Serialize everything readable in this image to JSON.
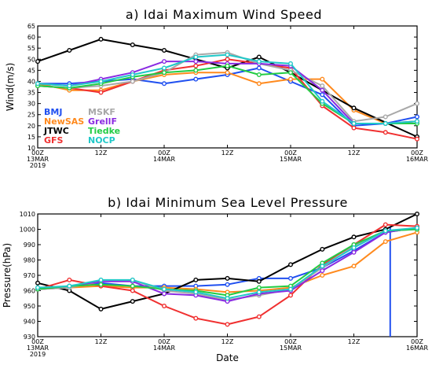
{
  "chart_data": [
    {
      "type": "line",
      "title": "a) Idai Maximum Wind Speed",
      "xlabel": "",
      "ylabel": "Wind(m/s)",
      "ylim": [
        10,
        65
      ],
      "yticks": [
        10,
        15,
        20,
        25,
        30,
        35,
        40,
        45,
        50,
        55,
        60,
        65
      ],
      "xlim": [
        0,
        24
      ],
      "xticks": [
        {
          "x": 0,
          "label": "00Z",
          "sub": "13MAR",
          "sub2": "2019"
        },
        {
          "x": 4,
          "label": "12Z",
          "sub": "",
          "sub2": ""
        },
        {
          "x": 8,
          "label": "00Z",
          "sub": "14MAR",
          "sub2": ""
        },
        {
          "x": 12,
          "label": "12Z",
          "sub": "",
          "sub2": ""
        },
        {
          "x": 16,
          "label": "00Z",
          "sub": "15MAR",
          "sub2": ""
        },
        {
          "x": 20,
          "label": "12Z",
          "sub": "",
          "sub2": ""
        },
        {
          "x": 24,
          "label": "00Z",
          "sub": "16MAR",
          "sub2": ""
        }
      ],
      "legend_placement": "bottom-left",
      "series": [
        {
          "name": "BMJ",
          "color": "#2050f0",
          "x": [
            0,
            2,
            4,
            6,
            8,
            10,
            12,
            14,
            16,
            18,
            20,
            22,
            24
          ],
          "values": [
            39,
            39,
            40,
            41,
            39,
            41,
            43,
            46,
            40,
            34,
            20,
            21,
            24
          ]
        },
        {
          "name": "NewSAS",
          "color": "#ff8a1e",
          "x": [
            0,
            2,
            4,
            6,
            8,
            10,
            12,
            14,
            16,
            18,
            20,
            22,
            24
          ],
          "values": [
            39,
            36,
            36,
            40,
            43,
            44,
            44,
            39,
            41,
            41,
            27,
            21,
            22
          ]
        },
        {
          "name": "JTWC",
          "color": "#000000",
          "x": [
            0,
            2,
            4,
            6,
            8,
            10,
            12,
            14,
            16,
            18,
            20,
            22,
            24
          ],
          "values": [
            49,
            54,
            59,
            56.5,
            54,
            null,
            46,
            51,
            44,
            null,
            28,
            null,
            15
          ]
        },
        {
          "name": "GFS",
          "color": "#f03030",
          "x": [
            0,
            2,
            4,
            6,
            8,
            10,
            12,
            14,
            16,
            18,
            20,
            22,
            24
          ],
          "values": [
            38,
            37,
            35,
            40,
            45,
            47,
            50,
            48,
            46,
            29,
            19,
            17,
            14
          ]
        },
        {
          "name": "MSKF",
          "color": "#a8a8a8",
          "x": [
            0,
            2,
            4,
            6,
            8,
            10,
            12,
            14,
            16,
            18,
            20,
            22,
            24
          ],
          "values": [
            38,
            37,
            38,
            40,
            44,
            52,
            53,
            48,
            45,
            38,
            22,
            24,
            30
          ]
        },
        {
          "name": "GrellF",
          "color": "#8a2be2",
          "x": [
            0,
            2,
            4,
            6,
            8,
            10,
            12,
            14,
            16,
            18,
            20,
            22,
            24
          ],
          "values": [
            39,
            38,
            41,
            44,
            49,
            49,
            48,
            48,
            47,
            36,
            21,
            21,
            22
          ]
        },
        {
          "name": "Tiedke",
          "color": "#22cc44",
          "x": [
            0,
            2,
            4,
            6,
            8,
            10,
            12,
            14,
            16,
            18,
            20,
            22,
            24
          ],
          "values": [
            38,
            37,
            39,
            42,
            44,
            45,
            47,
            43,
            44,
            30,
            21,
            21,
            21
          ]
        },
        {
          "name": "NOCP",
          "color": "#20c8c8",
          "x": [
            0,
            2,
            4,
            6,
            8,
            10,
            12,
            14,
            16,
            18,
            20,
            22,
            24
          ],
          "values": [
            39,
            38,
            40,
            43,
            46,
            51,
            52,
            49,
            48,
            31,
            21,
            21,
            22
          ]
        }
      ]
    },
    {
      "type": "line",
      "title": "b) Idai Minimum Sea Level Pressure",
      "xlabel": "Date",
      "ylabel": "Pressure(hPa)",
      "ylim": [
        930,
        1010
      ],
      "yticks": [
        930,
        940,
        950,
        960,
        970,
        980,
        990,
        1000,
        1010
      ],
      "xlim": [
        0,
        24
      ],
      "xticks": [
        {
          "x": 0,
          "label": "00Z",
          "sub": "13MAR",
          "sub2": "2019"
        },
        {
          "x": 4,
          "label": "12Z",
          "sub": "",
          "sub2": ""
        },
        {
          "x": 8,
          "label": "00Z",
          "sub": "14MAR",
          "sub2": ""
        },
        {
          "x": 12,
          "label": "12Z",
          "sub": "",
          "sub2": ""
        },
        {
          "x": 16,
          "label": "00Z",
          "sub": "15MAR",
          "sub2": ""
        },
        {
          "x": 20,
          "label": "12Z",
          "sub": "",
          "sub2": ""
        },
        {
          "x": 24,
          "label": "00Z",
          "sub": "16MAR",
          "sub2": ""
        }
      ],
      "vline": {
        "x": 22.3,
        "color": "#2050f0"
      },
      "series": [
        {
          "name": "BMJ",
          "color": "#2050f0",
          "x": [
            0,
            2,
            4,
            6,
            8,
            10,
            12,
            14,
            16,
            18,
            20,
            22,
            24
          ],
          "values": [
            961,
            962,
            965,
            963,
            963,
            963,
            964,
            968,
            968,
            975,
            986,
            998,
            1001
          ]
        },
        {
          "name": "NewSAS",
          "color": "#ff8a1e",
          "x": [
            0,
            2,
            4,
            6,
            8,
            10,
            12,
            14,
            16,
            18,
            20,
            22,
            24
          ],
          "values": [
            961,
            962,
            963,
            962,
            962,
            961,
            959,
            960,
            962,
            970,
            976,
            992,
            998
          ]
        },
        {
          "name": "JTWC",
          "color": "#000000",
          "x": [
            0,
            1,
            2,
            3,
            4,
            5,
            6,
            7,
            8,
            9,
            10,
            11,
            12,
            13,
            14,
            15,
            16,
            17,
            18,
            19,
            20,
            21,
            22,
            23,
            24
          ],
          "values": [
            965,
            null,
            960,
            null,
            948,
            null,
            953,
            null,
            958,
            null,
            967,
            null,
            968,
            null,
            966,
            null,
            977,
            null,
            987,
            null,
            995,
            null,
            1000,
            null,
            1010
          ]
        },
        {
          "name": "GFS",
          "color": "#f03030",
          "x": [
            0,
            2,
            4,
            6,
            8,
            10,
            12,
            14,
            16,
            18,
            20,
            22,
            24
          ],
          "values": [
            961,
            967,
            963,
            960,
            950,
            942,
            938,
            943,
            957,
            977,
            990,
            1003,
            1002
          ]
        },
        {
          "name": "MSKF",
          "color": "#a8a8a8",
          "x": [
            0,
            2,
            4,
            6,
            8,
            10,
            12,
            14,
            16,
            18,
            20,
            22,
            24
          ],
          "values": [
            961,
            962,
            966,
            967,
            960,
            958,
            954,
            957,
            961,
            975,
            989,
            999,
            1000
          ]
        },
        {
          "name": "GrellF",
          "color": "#8a2be2",
          "x": [
            0,
            2,
            4,
            6,
            8,
            10,
            12,
            14,
            16,
            18,
            20,
            22,
            24
          ],
          "values": [
            961,
            963,
            966,
            966,
            958,
            957,
            953,
            958,
            960,
            973,
            985,
            998,
            1001
          ]
        },
        {
          "name": "Tiedke",
          "color": "#22cc44",
          "x": [
            0,
            2,
            4,
            6,
            8,
            10,
            12,
            14,
            16,
            18,
            20,
            22,
            24
          ],
          "values": [
            961,
            963,
            964,
            963,
            961,
            960,
            957,
            962,
            963,
            978,
            990,
            999,
            1000
          ]
        },
        {
          "name": "NOCP",
          "color": "#20c8c8",
          "x": [
            0,
            2,
            4,
            6,
            8,
            10,
            12,
            14,
            16,
            18,
            20,
            22,
            24
          ],
          "values": [
            962,
            963,
            967,
            967,
            961,
            959,
            955,
            959,
            961,
            976,
            988,
            999,
            1001
          ]
        }
      ]
    }
  ]
}
